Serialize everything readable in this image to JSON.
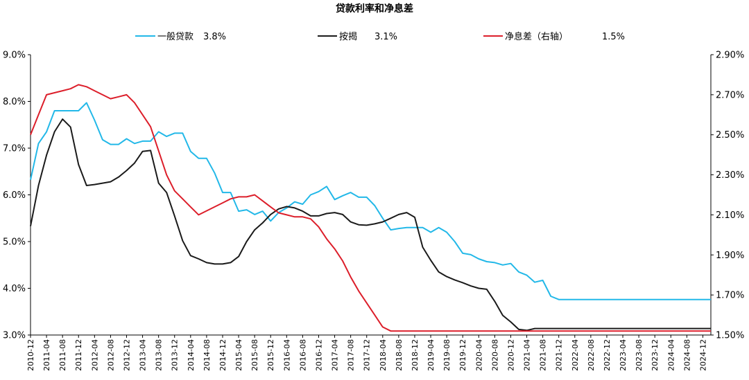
{
  "chart_data": {
    "type": "line",
    "title": "贷款利率和净息差",
    "x": [
      "2010-12",
      "2011-02",
      "2011-04",
      "2011-06",
      "2011-08",
      "2011-10",
      "2011-12",
      "2012-02",
      "2012-04",
      "2012-06",
      "2012-08",
      "2012-10",
      "2012-12",
      "2013-02",
      "2013-04",
      "2013-06",
      "2013-08",
      "2013-10",
      "2013-12",
      "2014-02",
      "2014-04",
      "2014-06",
      "2014-08",
      "2014-10",
      "2014-12",
      "2015-02",
      "2015-04",
      "2015-06",
      "2015-08",
      "2015-10",
      "2015-12",
      "2016-02",
      "2016-04",
      "2016-06",
      "2016-08",
      "2016-10",
      "2016-12",
      "2017-02",
      "2017-04",
      "2017-06",
      "2017-08",
      "2017-10",
      "2017-12",
      "2018-02",
      "2018-04",
      "2018-06",
      "2018-08",
      "2018-10",
      "2018-12",
      "2019-02",
      "2019-04",
      "2019-06",
      "2019-08",
      "2019-10",
      "2019-12",
      "2020-02",
      "2020-04",
      "2020-06",
      "2020-08",
      "2020-10",
      "2020-12",
      "2021-02",
      "2021-04",
      "2021-06",
      "2021-08",
      "2021-10",
      "2021-12",
      "2022-02",
      "2022-04",
      "2022-06",
      "2022-08",
      "2022-10",
      "2022-12",
      "2023-02",
      "2023-04",
      "2023-06",
      "2023-08",
      "2023-10",
      "2023-12",
      "2024-02",
      "2024-04",
      "2024-06",
      "2024-08",
      "2024-10",
      "2024-12",
      "2025-02"
    ],
    "x_ticks": [
      "2010-12",
      "2011-04",
      "2011-08",
      "2011-12",
      "2012-04",
      "2012-08",
      "2012-12",
      "2013-04",
      "2013-08",
      "2013-12",
      "2014-04",
      "2014-08",
      "2014-12",
      "2015-04",
      "2015-08",
      "2015-12",
      "2016-04",
      "2016-08",
      "2016-12",
      "2017-04",
      "2017-08",
      "2017-12",
      "2018-04",
      "2018-08",
      "2018-12",
      "2019-04",
      "2019-08",
      "2019-12",
      "2020-04",
      "2020-08",
      "2020-12",
      "2021-04",
      "2021-08",
      "2021-12",
      "2022-04",
      "2022-08",
      "2022-12",
      "2023-04",
      "2023-08",
      "2023-12",
      "2024-04",
      "2024-08",
      "2024-12"
    ],
    "ylim_left": [
      3.0,
      9.0
    ],
    "y_ticks_left": [
      "3.0%",
      "4.0%",
      "5.0%",
      "6.0%",
      "7.0%",
      "8.0%",
      "9.0%"
    ],
    "ylim_right": [
      1.5,
      2.9
    ],
    "y_ticks_right": [
      "1.50%",
      "1.70%",
      "1.90%",
      "2.10%",
      "2.30%",
      "2.50%",
      "2.70%",
      "2.90%"
    ],
    "grid": false,
    "legend_position": "top",
    "series": [
      {
        "name": "一般贷款",
        "latest_label": "3.8%",
        "axis": "left",
        "color": "#22b8e8",
        "values": [
          6.32,
          7.1,
          7.35,
          7.8,
          7.8,
          7.8,
          7.8,
          7.97,
          7.6,
          7.18,
          7.08,
          7.08,
          7.2,
          7.1,
          7.15,
          7.15,
          7.35,
          7.25,
          7.32,
          7.32,
          6.93,
          6.78,
          6.78,
          6.47,
          6.05,
          6.05,
          5.65,
          5.68,
          5.58,
          5.65,
          5.44,
          5.62,
          5.72,
          5.85,
          5.8,
          6.0,
          6.07,
          6.18,
          5.9,
          5.98,
          6.05,
          5.95,
          5.95,
          5.77,
          5.5,
          5.25,
          5.28,
          5.3,
          5.3,
          5.3,
          5.2,
          5.3,
          5.2,
          5.0,
          4.75,
          4.72,
          4.63,
          4.57,
          4.55,
          4.5,
          4.53,
          4.35,
          4.28,
          4.13,
          4.17,
          3.83,
          3.76,
          3.76,
          3.76,
          3.76,
          3.76,
          3.76,
          3.76,
          3.76,
          3.76,
          3.76,
          3.76,
          3.76,
          3.76,
          3.76,
          3.76,
          3.76,
          3.76,
          3.76,
          3.76,
          3.76
        ]
      },
      {
        "name": "按揭",
        "latest_label": "3.1%",
        "axis": "left",
        "color": "#1a1a1a",
        "values": [
          5.33,
          6.2,
          6.85,
          7.35,
          7.62,
          7.45,
          6.65,
          6.2,
          6.22,
          6.25,
          6.28,
          6.38,
          6.52,
          6.68,
          6.93,
          6.95,
          6.25,
          6.05,
          5.55,
          5.02,
          4.7,
          4.63,
          4.55,
          4.52,
          4.52,
          4.55,
          4.68,
          5.0,
          5.25,
          5.4,
          5.58,
          5.7,
          5.75,
          5.72,
          5.65,
          5.55,
          5.55,
          5.6,
          5.62,
          5.58,
          5.42,
          5.36,
          5.35,
          5.38,
          5.42,
          5.5,
          5.58,
          5.62,
          5.52,
          4.88,
          4.6,
          4.35,
          4.25,
          4.18,
          4.12,
          4.05,
          4.0,
          3.98,
          3.72,
          3.42,
          3.28,
          3.12,
          3.1,
          3.14,
          3.14,
          3.14,
          3.14,
          3.14,
          3.14,
          3.14,
          3.14,
          3.14,
          3.14,
          3.14,
          3.14,
          3.14,
          3.14,
          3.14,
          3.14,
          3.14,
          3.14,
          3.14,
          3.14,
          3.14,
          3.14,
          3.14
        ]
      },
      {
        "name": "净息差（右轴）",
        "latest_label": "1.5%",
        "axis": "right",
        "color": "#dc1e2a",
        "values": [
          2.5,
          2.6,
          2.7,
          2.71,
          2.72,
          2.73,
          2.75,
          2.74,
          2.72,
          2.7,
          2.68,
          2.69,
          2.7,
          2.66,
          2.6,
          2.54,
          2.42,
          2.3,
          2.22,
          2.18,
          2.14,
          2.1,
          2.12,
          2.14,
          2.16,
          2.18,
          2.19,
          2.19,
          2.2,
          2.17,
          2.14,
          2.11,
          2.1,
          2.09,
          2.09,
          2.08,
          2.04,
          1.98,
          1.93,
          1.87,
          1.79,
          1.72,
          1.66,
          1.6,
          1.54,
          1.52,
          1.52,
          1.52,
          1.52,
          1.52,
          1.52,
          1.52,
          1.52,
          1.52,
          1.52,
          1.52,
          1.52,
          1.52,
          1.52,
          1.52,
          1.52,
          1.52,
          1.52,
          1.52,
          1.52,
          1.52,
          1.52,
          1.52,
          1.52,
          1.52,
          1.52,
          1.52,
          1.52,
          1.52,
          1.52,
          1.52,
          1.52,
          1.52,
          1.52,
          1.52,
          1.52,
          1.52,
          1.52,
          1.52,
          1.52,
          1.52
        ]
      }
    ]
  }
}
